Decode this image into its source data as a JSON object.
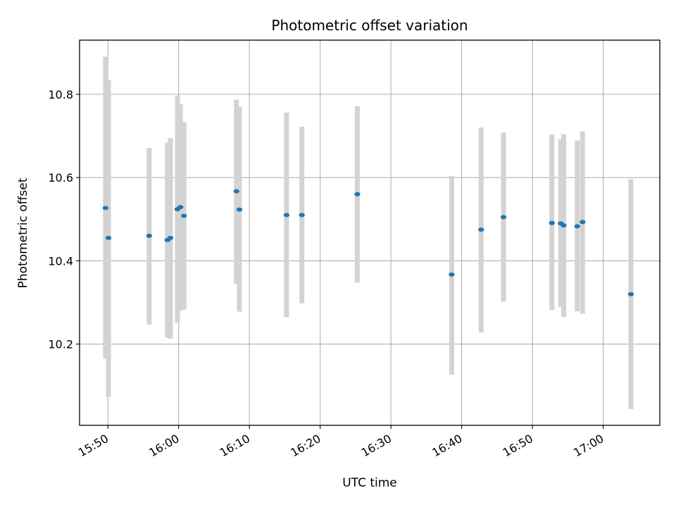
{
  "chart_data": {
    "type": "scatter",
    "title": "Photometric offset variation",
    "xlabel": "UTC time",
    "ylabel": "Photometric offset",
    "x_axis_kind": "time",
    "xlim": [
      "15:46",
      "17:08"
    ],
    "ylim": [
      10.005,
      10.93
    ],
    "x_ticks": [
      "15:50",
      "16:00",
      "16:10",
      "16:20",
      "16:30",
      "16:40",
      "16:50",
      "17:00"
    ],
    "y_ticks": [
      10.2,
      10.4,
      10.6,
      10.8
    ],
    "grid": true,
    "marker_color": "#1f77b4",
    "errorbar_color": "#d3d3d3",
    "points": [
      {
        "x": "15:49:40",
        "y": 10.527,
        "lo": 10.165,
        "hi": 10.89
      },
      {
        "x": "15:50:05",
        "y": 10.455,
        "lo": 10.073,
        "hi": 10.835
      },
      {
        "x": "15:55:50",
        "y": 10.46,
        "lo": 10.247,
        "hi": 10.671
      },
      {
        "x": "15:58:25",
        "y": 10.45,
        "lo": 10.216,
        "hi": 10.684
      },
      {
        "x": "15:58:50",
        "y": 10.455,
        "lo": 10.213,
        "hi": 10.695
      },
      {
        "x": "15:59:50",
        "y": 10.524,
        "lo": 10.251,
        "hi": 10.797
      },
      {
        "x": "16:00:15",
        "y": 10.529,
        "lo": 10.28,
        "hi": 10.777
      },
      {
        "x": "16:00:45",
        "y": 10.508,
        "lo": 10.283,
        "hi": 10.733
      },
      {
        "x": "16:08:10",
        "y": 10.567,
        "lo": 10.345,
        "hi": 10.787
      },
      {
        "x": "16:08:35",
        "y": 10.523,
        "lo": 10.278,
        "hi": 10.77
      },
      {
        "x": "16:15:15",
        "y": 10.51,
        "lo": 10.265,
        "hi": 10.756
      },
      {
        "x": "16:17:25",
        "y": 10.51,
        "lo": 10.298,
        "hi": 10.722
      },
      {
        "x": "16:25:15",
        "y": 10.56,
        "lo": 10.348,
        "hi": 10.771
      },
      {
        "x": "16:38:35",
        "y": 10.367,
        "lo": 10.127,
        "hi": 10.604
      },
      {
        "x": "16:42:45",
        "y": 10.475,
        "lo": 10.228,
        "hi": 10.72
      },
      {
        "x": "16:45:55",
        "y": 10.505,
        "lo": 10.302,
        "hi": 10.708
      },
      {
        "x": "16:52:45",
        "y": 10.491,
        "lo": 10.282,
        "hi": 10.703
      },
      {
        "x": "16:54:00",
        "y": 10.49,
        "lo": 10.289,
        "hi": 10.692
      },
      {
        "x": "16:54:25",
        "y": 10.485,
        "lo": 10.265,
        "hi": 10.704
      },
      {
        "x": "16:56:20",
        "y": 10.483,
        "lo": 10.279,
        "hi": 10.689
      },
      {
        "x": "16:57:05",
        "y": 10.493,
        "lo": 10.273,
        "hi": 10.711
      },
      {
        "x": "17:03:55",
        "y": 10.32,
        "lo": 10.044,
        "hi": 10.596
      }
    ]
  }
}
